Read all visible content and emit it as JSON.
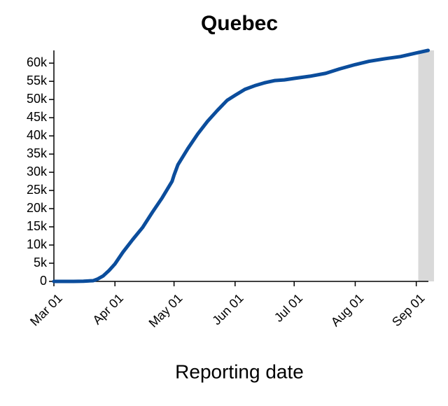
{
  "chart_data": {
    "type": "line",
    "title": "Quebec",
    "x_label": "Reporting date",
    "x": [
      0,
      10,
      15,
      20,
      22,
      25,
      28,
      31,
      35,
      40,
      45,
      50,
      55,
      60,
      61,
      63,
      68,
      73,
      78,
      83,
      88,
      92,
      97,
      102,
      107,
      112,
      117,
      122,
      130,
      138,
      145,
      153,
      160,
      168,
      176,
      184,
      190
    ],
    "series": [
      {
        "name": "Quebec",
        "color": "#0b4d9c",
        "values": [
          0,
          0,
          50,
          200,
          600,
          1500,
          3000,
          4800,
          8000,
          11500,
          14800,
          19000,
          23000,
          27500,
          29200,
          32100,
          36500,
          40500,
          44000,
          47000,
          49800,
          51150,
          52800,
          53800,
          54600,
          55200,
          55400,
          55800,
          56400,
          57200,
          58400,
          59600,
          60500,
          61200,
          61800,
          62800,
          63500
        ]
      }
    ],
    "xlim": [
      0,
      193
    ],
    "xticks": [
      {
        "value": 0,
        "label": "Mar 01"
      },
      {
        "value": 31,
        "label": "Apr 01"
      },
      {
        "value": 61,
        "label": "May 01"
      },
      {
        "value": 92,
        "label": "Jun 01"
      },
      {
        "value": 122,
        "label": "Jul 01"
      },
      {
        "value": 153,
        "label": "Aug 01"
      },
      {
        "value": 184,
        "label": "Sep 01"
      }
    ],
    "ylim": [
      0,
      63500
    ],
    "yticks": [
      0,
      {
        "value": 5000,
        "label": "5k"
      },
      {
        "value": 10000,
        "label": "10k"
      },
      {
        "value": 15000,
        "label": "15k"
      },
      {
        "value": 20000,
        "label": "20k"
      },
      {
        "value": 25000,
        "label": "25k"
      },
      {
        "value": 30000,
        "label": {
          "v": "30k"
        }
      },
      {
        "value": 35000,
        "label": "35k"
      },
      {
        "value": 40000,
        "label": "40k"
      },
      {
        "value": 45000,
        "label": "45k"
      },
      {
        "value": 50000,
        "label": "50k"
      },
      {
        "value": 55000,
        "label": "55k"
      },
      {
        "value": 60000,
        "label": "60k"
      }
    ],
    "shaded_x": [
      185,
      193
    ],
    "shade_color": "#d9d9d9",
    "grid": false
  }
}
